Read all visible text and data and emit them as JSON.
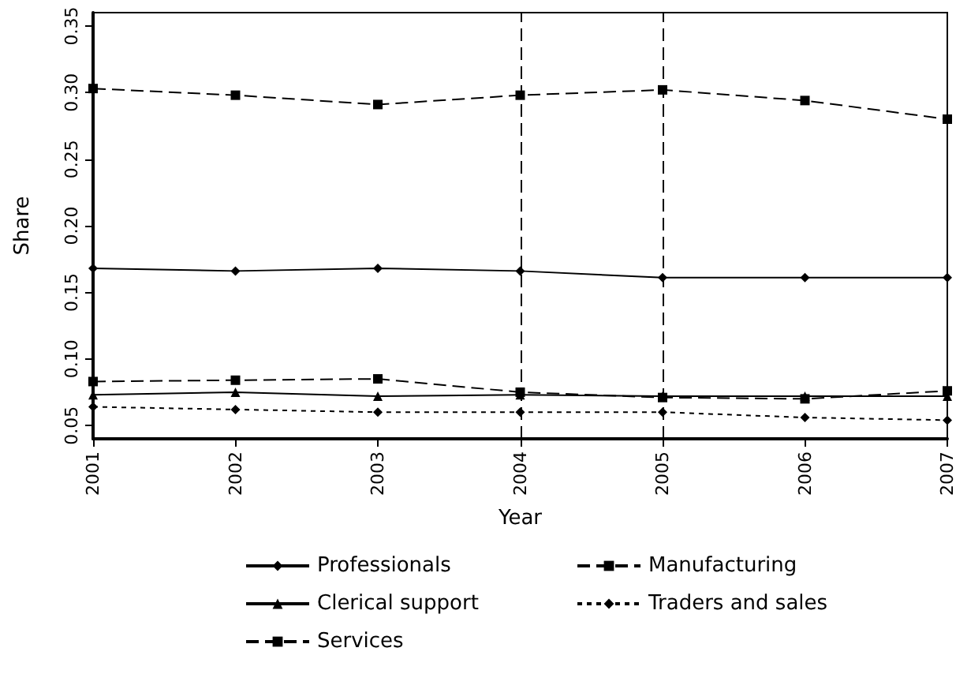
{
  "chart_data": {
    "type": "line",
    "xlabel": "Year",
    "ylabel": "Share",
    "x": [
      2001,
      2002,
      2003,
      2004,
      2005,
      2006,
      2007
    ],
    "xlim": [
      2001,
      2007
    ],
    "xticks": [
      2001,
      2002,
      2003,
      2004,
      2005,
      2006,
      2007
    ],
    "ylim": [
      0.04,
      0.36
    ],
    "yticks": [
      {
        "value": 0.05,
        "label": "0.05"
      },
      {
        "value": 0.1,
        "label": "0.10"
      },
      {
        "value": 0.15,
        "label": "0.15"
      },
      {
        "value": 0.2,
        "label": "0.20"
      },
      {
        "value": 0.25,
        "label": "0.25"
      },
      {
        "value": 0.3,
        "label": "0.30"
      },
      {
        "value": 0.35,
        "label": "0.35"
      }
    ],
    "grid": false,
    "legend": "bottom",
    "ref_lines": [
      {
        "axis": "x",
        "value": 2004,
        "line_style": "dashed",
        "color": "#000000"
      },
      {
        "axis": "x",
        "value": 2005,
        "line_style": "dashed",
        "color": "#000000"
      }
    ],
    "series": [
      {
        "name": "Professionals",
        "color": "#000000",
        "marker": "diamond",
        "line_style": "solid",
        "values": [
          0.168,
          0.166,
          0.168,
          0.166,
          0.161,
          0.161,
          0.161
        ]
      },
      {
        "name": "Manufacturing",
        "color": "#000000",
        "marker": "square",
        "line_style": "dashed",
        "values": [
          0.303,
          0.298,
          0.291,
          0.298,
          0.302,
          0.294,
          0.28
        ]
      },
      {
        "name": "Clerical support",
        "color": "#000000",
        "marker": "triangle",
        "line_style": "solid",
        "values": [
          0.073,
          0.075,
          0.072,
          0.073,
          0.072,
          0.072,
          0.072
        ]
      },
      {
        "name": "Traders and sales",
        "color": "#000000",
        "marker": "diamond",
        "line_style": "dotted",
        "values": [
          0.064,
          0.062,
          0.06,
          0.06,
          0.06,
          0.056,
          0.054
        ]
      },
      {
        "name": "Services",
        "color": "#000000",
        "marker": "square",
        "line_style": "dashed",
        "values": [
          0.083,
          0.084,
          0.085,
          0.075,
          0.071,
          0.07,
          0.076
        ]
      }
    ]
  }
}
